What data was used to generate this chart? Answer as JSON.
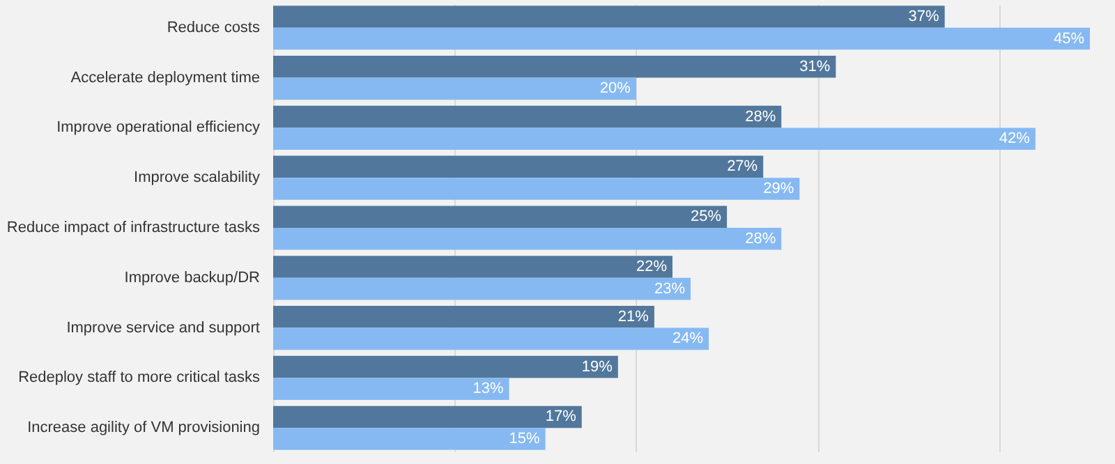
{
  "chart_data": {
    "type": "bar",
    "orientation": "horizontal",
    "categories": [
      "Reduce costs",
      "Accelerate deployment time",
      "Improve operational efficiency",
      "Improve scalability",
      "Reduce impact of infrastructure tasks",
      "Improve backup/DR",
      "Improve service and support",
      "Redeploy staff to more critical tasks",
      "Increase agility of VM provisioning"
    ],
    "series": [
      {
        "color": "#52779c",
        "values": [
          37,
          31,
          28,
          27,
          25,
          22,
          21,
          19,
          17
        ],
        "value_labels": [
          "37%",
          "31%",
          "28%",
          "27%",
          "25%",
          "22%",
          "21%",
          "19%",
          "17%"
        ]
      },
      {
        "color": "#86b9f2",
        "values": [
          45,
          20,
          42,
          29,
          28,
          23,
          24,
          13,
          15
        ],
        "value_labels": [
          "45%",
          "20%",
          "42%",
          "29%",
          "28%",
          "23%",
          "24%",
          "13%",
          "15%"
        ]
      }
    ],
    "xticks": [
      {
        "value": 0,
        "label": null
      },
      {
        "value": 10,
        "label": null
      },
      {
        "value": 20,
        "label": null
      },
      {
        "value": 30,
        "label": null
      },
      {
        "value": 40,
        "label": null
      }
    ],
    "grid": "x",
    "tick_labels": false,
    "legend": false
  }
}
